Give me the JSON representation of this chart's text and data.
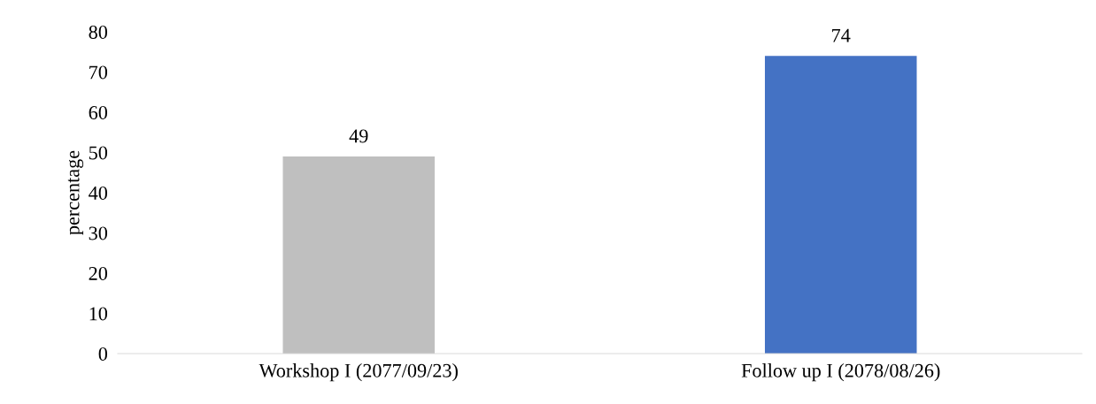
{
  "chart_data": {
    "type": "bar",
    "ylabel": "percentage",
    "categories": [
      "Workshop I (2077/09/23)",
      "Follow up I (2078/08/26)"
    ],
    "values": [
      49,
      74
    ],
    "colors": [
      "#bfbfbf",
      "#4472c4"
    ],
    "ylim": [
      0,
      80
    ],
    "yticks": [
      0,
      10,
      20,
      30,
      40,
      50,
      60,
      70,
      80
    ],
    "data_labels": true,
    "grid": false,
    "legend": false
  }
}
